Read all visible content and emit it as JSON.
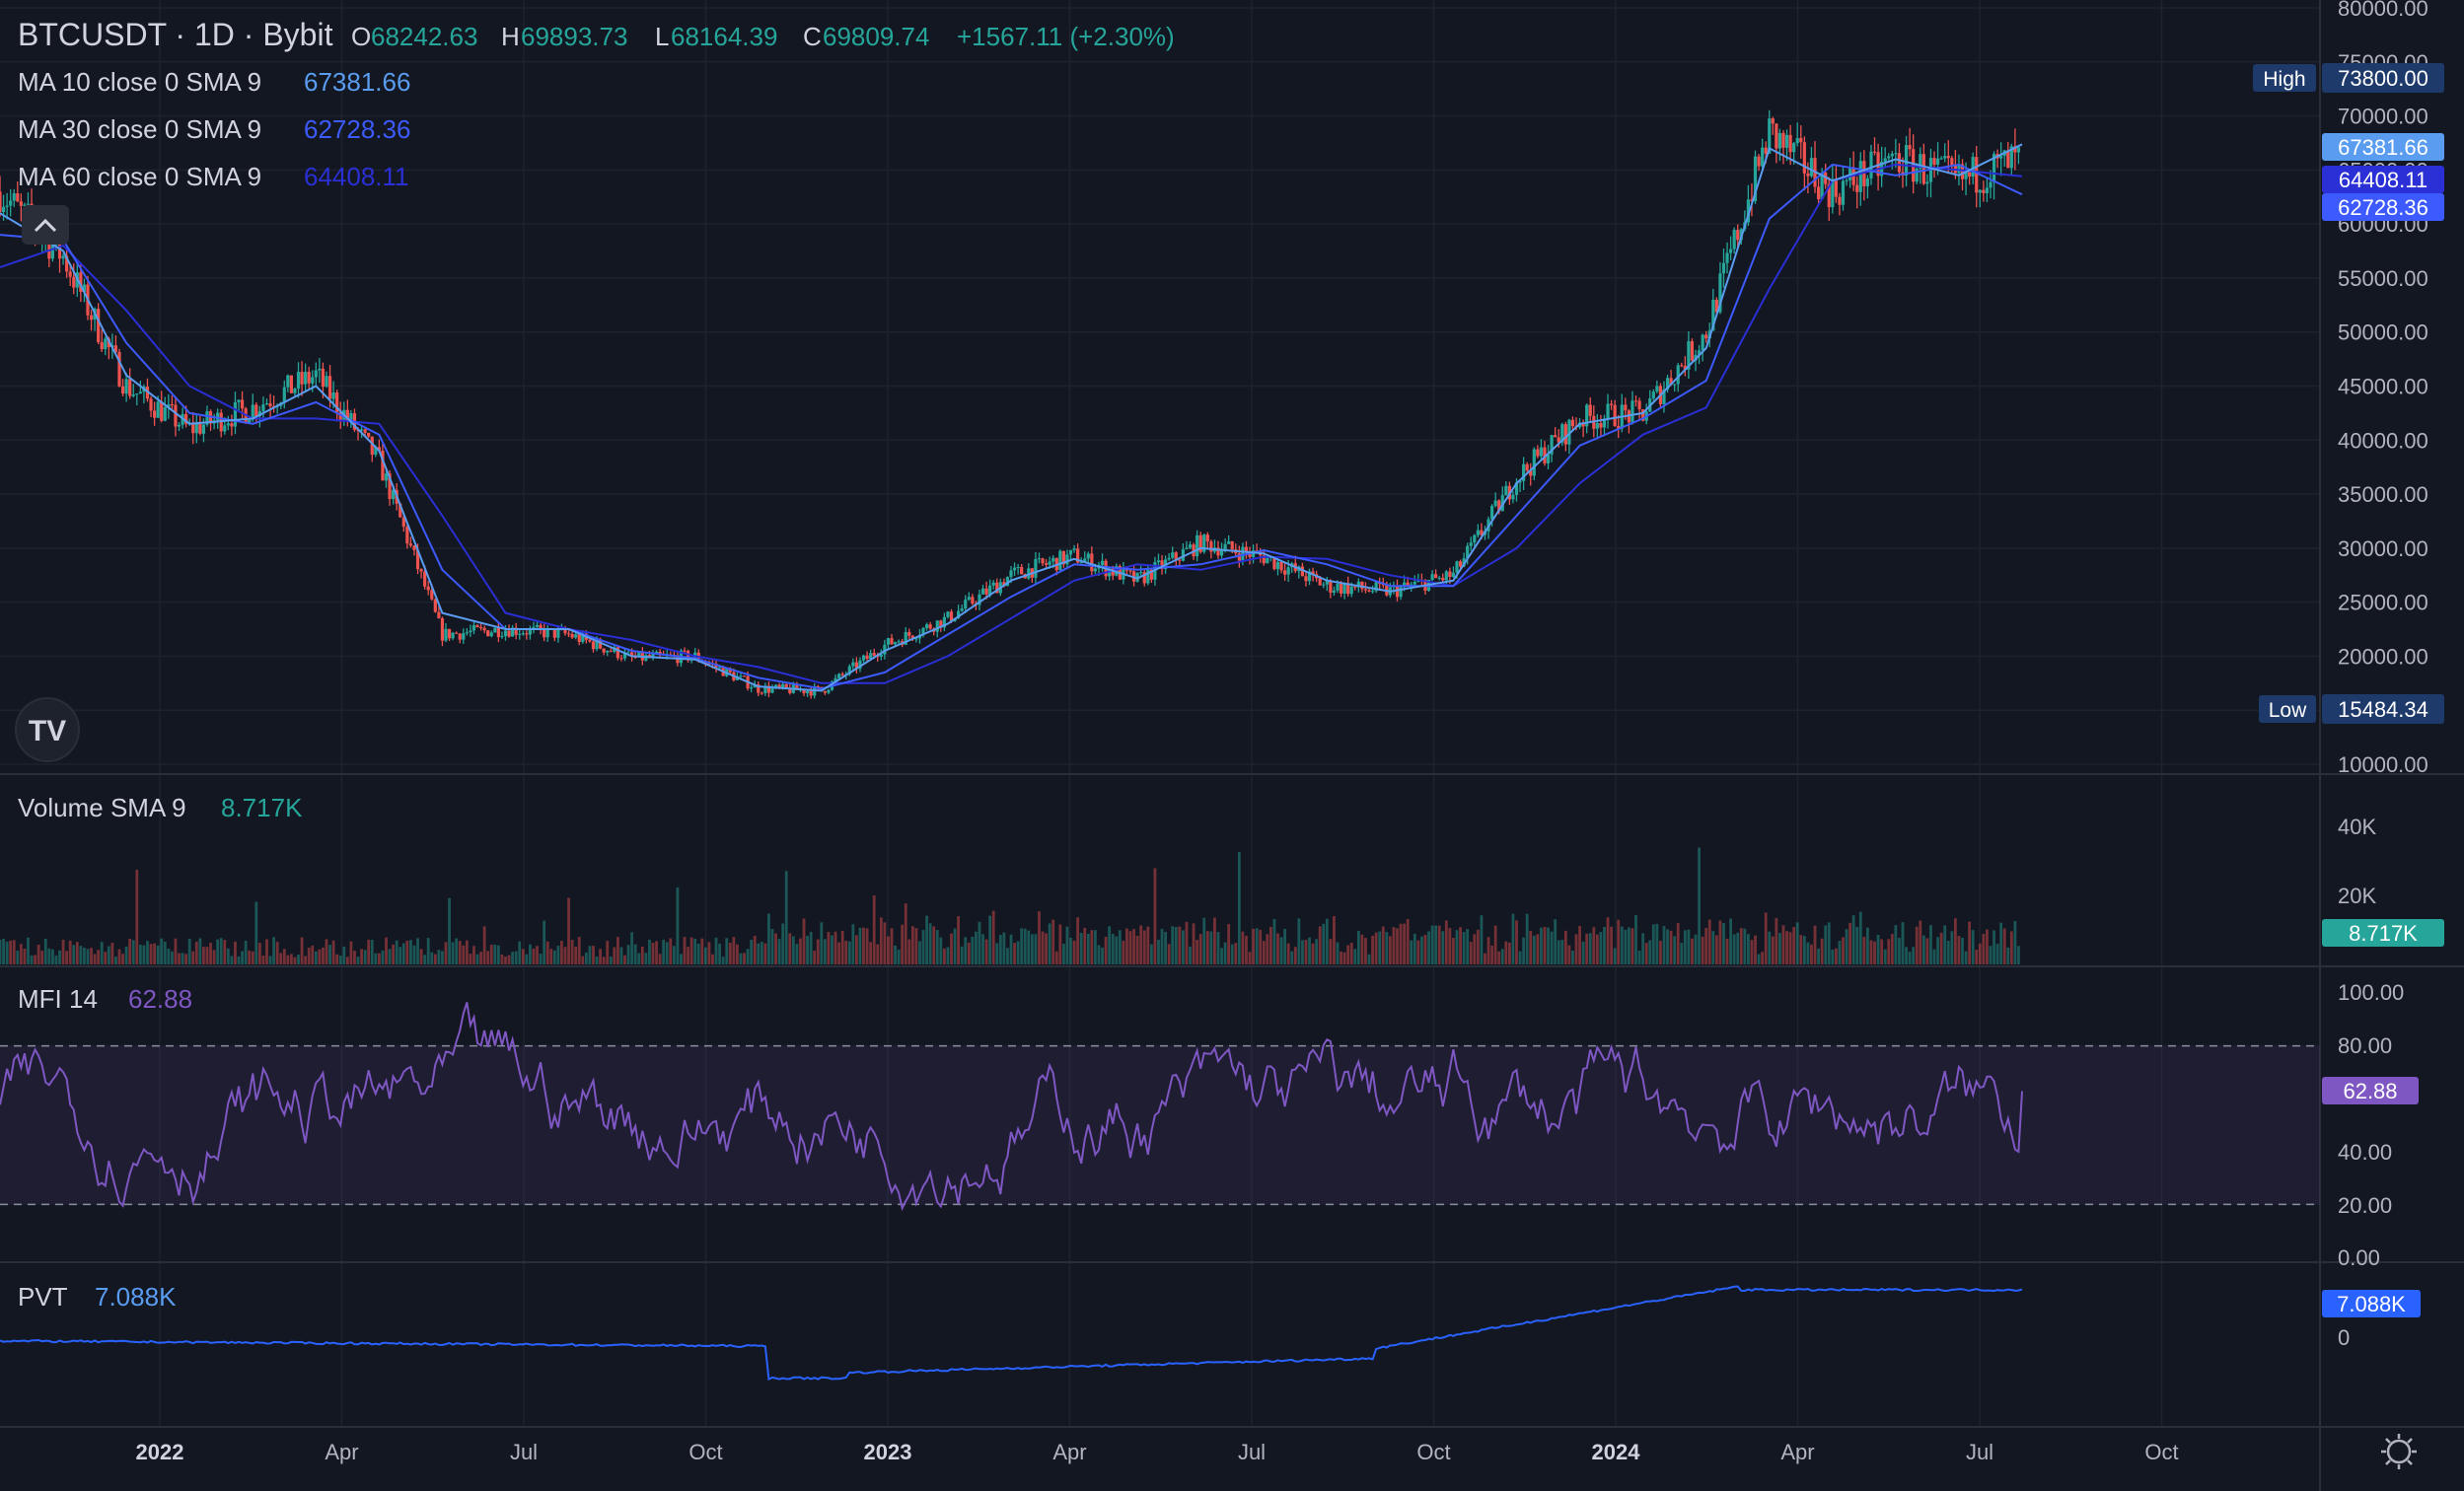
{
  "header": {
    "symbol": "BTCUSDT · 1D · Bybit",
    "open": "68242.63",
    "high": "69893.73",
    "low": "68164.39",
    "close": "69809.74",
    "change": "+1567.11 (+2.30%)"
  },
  "colors": {
    "background": "#131722",
    "grid": "#1e222d",
    "up": "#26a69a",
    "down": "#ef5350",
    "ma10": "#5a9cf0",
    "ma30": "#3d5afe",
    "ma60": "#2a2fd6",
    "mfi": "#7e57c2",
    "pvt": "#2962ff"
  },
  "legend": [
    {
      "label": "MA 10 close 0 SMA 9",
      "value": "67381.66",
      "color": "#5a9cf0"
    },
    {
      "label": "MA 30 close 0 SMA 9",
      "value": "62728.36",
      "color": "#3d5afe"
    },
    {
      "label": "MA 60 close 0 SMA 9",
      "value": "64408.11",
      "color": "#2a2fd6"
    }
  ],
  "panes": {
    "volume": {
      "label": "Volume SMA 9",
      "value": "8.717K",
      "ticks": [
        "40K",
        "20K"
      ],
      "badge": "8.717K"
    },
    "mfi": {
      "label": "MFI 14",
      "value": "62.88",
      "ticks": [
        "100.00",
        "80.00",
        "40.00",
        "20.00",
        "0.00"
      ],
      "badge": "62.88"
    },
    "pvt": {
      "label": "PVT",
      "value": "7.088K",
      "ticks": [
        "0"
      ],
      "badge": "7.088K"
    }
  },
  "price_axis": {
    "ticks": [
      "80000.00",
      "75000.00",
      "70000.00",
      "65000.00",
      "60000.00",
      "55000.00",
      "50000.00",
      "45000.00",
      "40000.00",
      "35000.00",
      "30000.00",
      "25000.00",
      "20000.00",
      "15000.00",
      "10000.00"
    ],
    "high_label": "High",
    "high_value": "73800.00",
    "low_label": "Low",
    "low_value": "15484.34",
    "badges": [
      {
        "value": "67381.66",
        "color": "#5a9cf0"
      },
      {
        "value": "64408.11",
        "color": "#2a2fd6"
      },
      {
        "value": "62728.36",
        "color": "#3d5afe"
      }
    ]
  },
  "time_axis": {
    "labels": [
      {
        "text": "2022",
        "major": true
      },
      {
        "text": "Apr",
        "major": false
      },
      {
        "text": "Jul",
        "major": false
      },
      {
        "text": "Oct",
        "major": false
      },
      {
        "text": "2023",
        "major": true
      },
      {
        "text": "Apr",
        "major": false
      },
      {
        "text": "Jul",
        "major": false
      },
      {
        "text": "Oct",
        "major": false
      },
      {
        "text": "2024",
        "major": true
      },
      {
        "text": "Apr",
        "major": false
      },
      {
        "text": "Jul",
        "major": false
      },
      {
        "text": "Oct",
        "major": false
      }
    ]
  },
  "chart_data": {
    "type": "line",
    "title": "BTCUSDT · 1D · Bybit",
    "ylim": [
      10000,
      80000
    ],
    "x": [
      "2021-11",
      "2021-12",
      "2022-01",
      "2022-02",
      "2022-03",
      "2022-04",
      "2022-05",
      "2022-06",
      "2022-07",
      "2022-08",
      "2022-09",
      "2022-10",
      "2022-11",
      "2022-12",
      "2023-01",
      "2023-02",
      "2023-03",
      "2023-04",
      "2023-05",
      "2023-06",
      "2023-07",
      "2023-08",
      "2023-09",
      "2023-10",
      "2023-11",
      "2023-12",
      "2024-01",
      "2024-02",
      "2024-03",
      "2024-04",
      "2024-05",
      "2024-06",
      "2024-07"
    ],
    "series": [
      {
        "name": "close",
        "values": [
          63000,
          57000,
          45000,
          41000,
          43000,
          46000,
          38000,
          22000,
          22500,
          22000,
          19800,
          20000,
          17000,
          16800,
          21000,
          23500,
          27500,
          29300,
          27000,
          30500,
          29200,
          26500,
          26000,
          27500,
          36500,
          42000,
          42500,
          50000,
          68500,
          63000,
          66000,
          64000,
          66000
        ]
      },
      {
        "name": "MA 10",
        "values": [
          61000,
          57500,
          46000,
          41500,
          42000,
          45000,
          39000,
          24000,
          22500,
          22500,
          20000,
          19700,
          17200,
          16800,
          20500,
          23000,
          27000,
          29000,
          27200,
          30000,
          29500,
          27000,
          26000,
          27000,
          36000,
          41500,
          42500,
          48500,
          67000,
          64000,
          66000,
          64500,
          67381.66
        ]
      },
      {
        "name": "MA 30",
        "values": [
          59000,
          58500,
          49000,
          42500,
          41500,
          43500,
          40500,
          28000,
          22500,
          22500,
          20500,
          19800,
          18000,
          17000,
          18500,
          22000,
          25500,
          28500,
          28000,
          28500,
          29800,
          28500,
          26500,
          26500,
          33000,
          39500,
          42000,
          45500,
          60500,
          65500,
          64500,
          65500,
          62728.36
        ]
      },
      {
        "name": "MA 60",
        "values": [
          56000,
          58000,
          52000,
          45000,
          42000,
          42000,
          41500,
          33000,
          24000,
          22500,
          21500,
          20000,
          19000,
          17500,
          17500,
          20000,
          23500,
          27000,
          28500,
          28000,
          29200,
          29000,
          27500,
          26500,
          30000,
          36000,
          40500,
          43000,
          54000,
          64000,
          65500,
          65000,
          64408.11
        ]
      }
    ],
    "ma_last": {
      "MA 10": 67381.66,
      "MA 30": 62728.36,
      "MA 60": 64408.11
    },
    "high": 73800.0,
    "low": 15484.34,
    "volume_sma9": 8717,
    "mfi14": 62.88,
    "mfi_bands": [
      20,
      80
    ],
    "pvt": 7088,
    "grid": true
  }
}
